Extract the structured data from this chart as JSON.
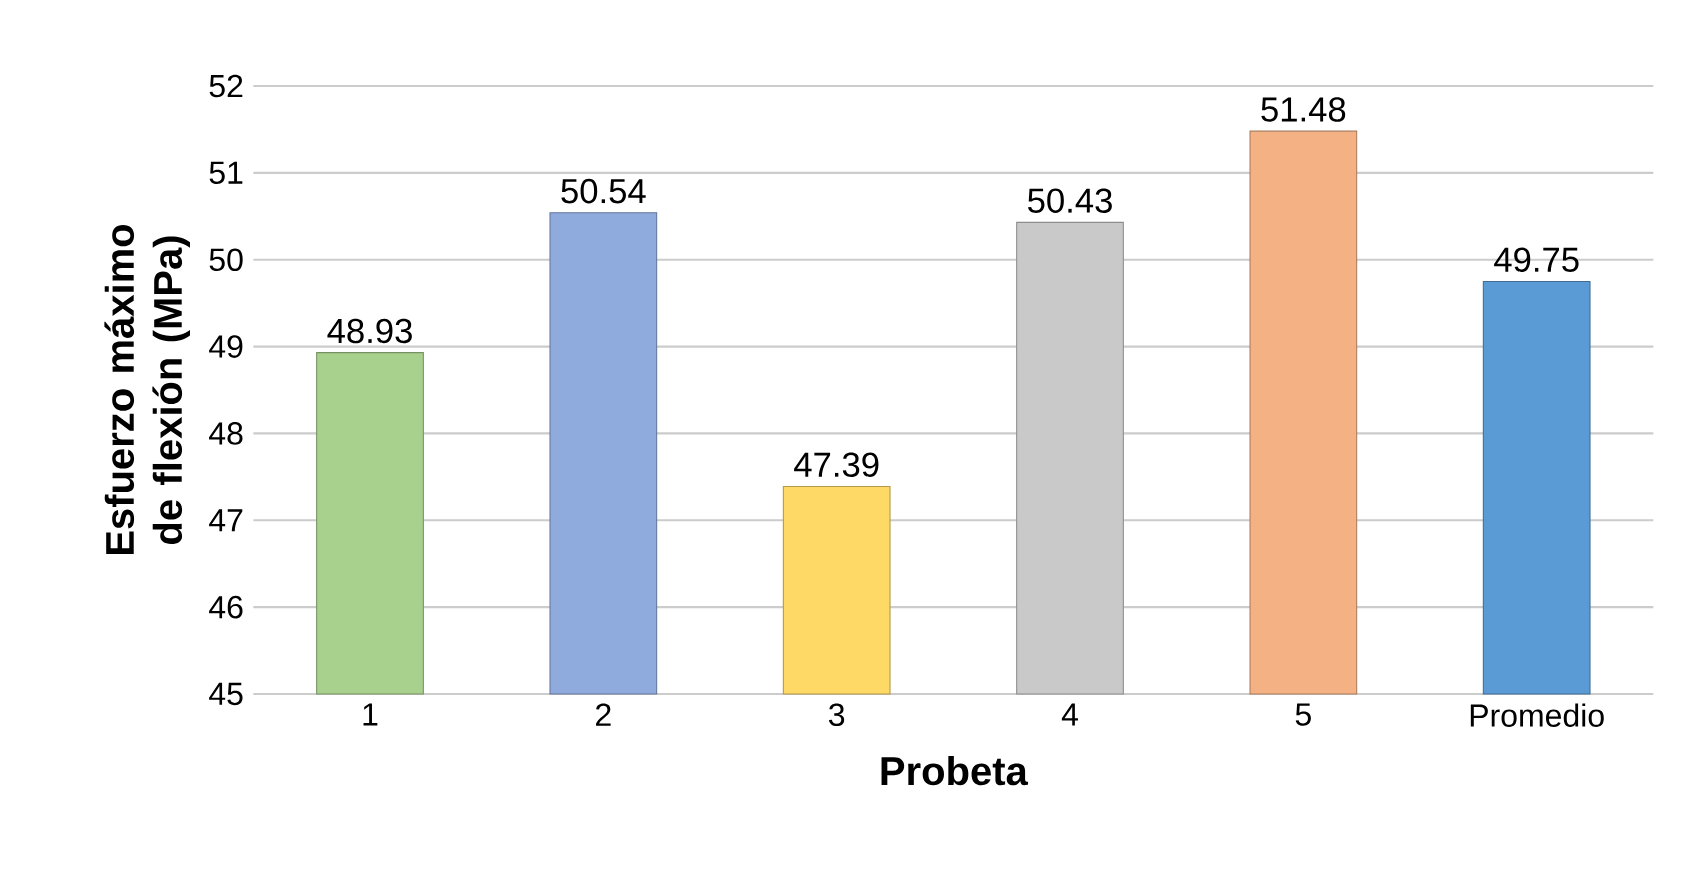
{
  "chart_data": {
    "type": "bar",
    "xlabel": "Probeta",
    "ylabel": "Esfuerzo máximo de flexión (MPa)",
    "categories": [
      "1",
      "2",
      "3",
      "4",
      "5",
      "Promedio"
    ],
    "values": [
      48.93,
      50.54,
      47.39,
      50.43,
      51.48,
      49.75
    ],
    "colors": [
      "#a9d18e",
      "#8faadc",
      "#ffd966",
      "#c9c9c9",
      "#f4b183",
      "#5b9bd5"
    ],
    "ylim": [
      45,
      52
    ],
    "yticks": [
      45,
      46,
      47,
      48,
      49,
      50,
      51,
      52
    ],
    "grid": "y",
    "data_labels": true
  }
}
